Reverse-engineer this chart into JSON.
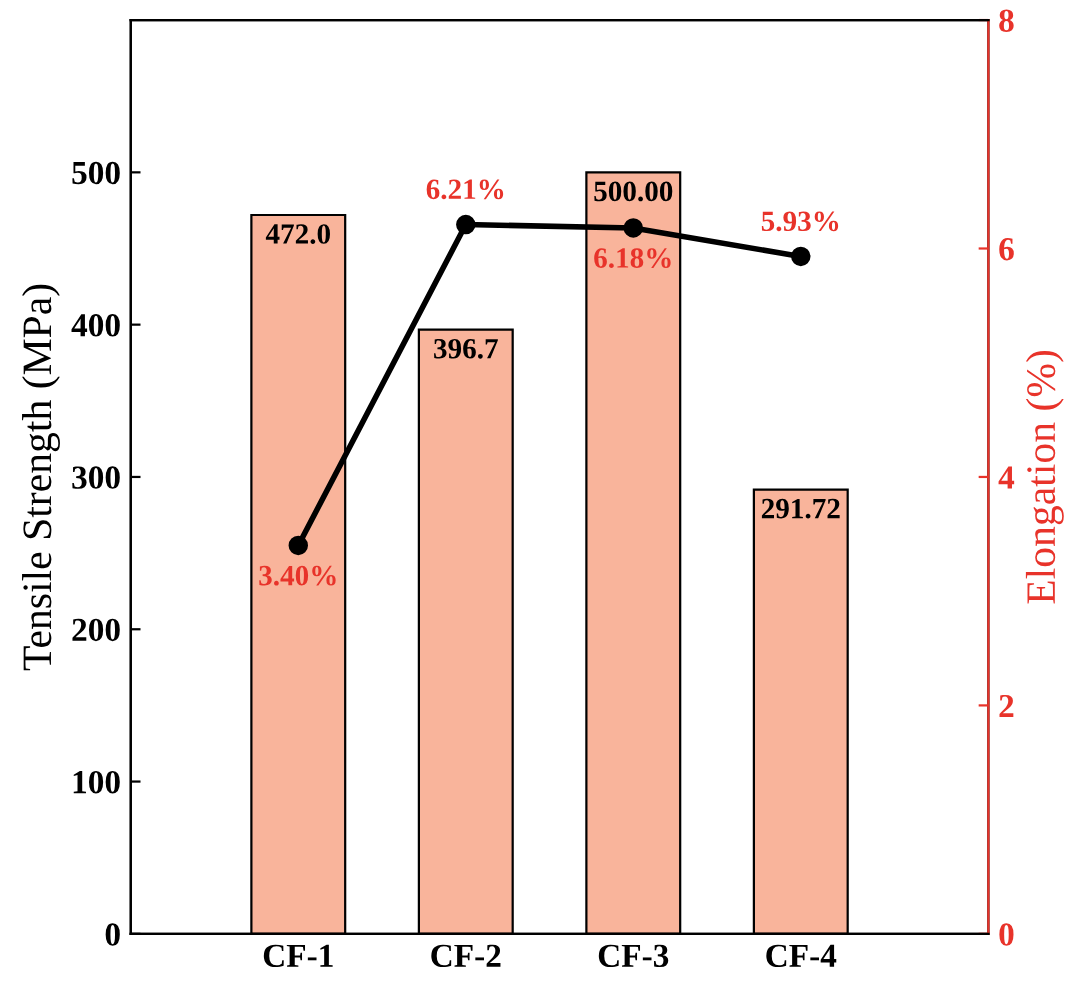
{
  "chart_data": {
    "type": "bar",
    "categories": [
      "CF-1",
      "CF-2",
      "CF-3",
      "CF-4"
    ],
    "ylabel": "Tensile Strength (MPa)",
    "y2label": "Elongation (%)",
    "ylim": [
      0,
      600
    ],
    "yticks": [
      0,
      100,
      200,
      300,
      400,
      500
    ],
    "y2lim": [
      0,
      8
    ],
    "y2ticks": [
      0,
      2,
      4,
      6,
      8
    ],
    "grid": false,
    "legend": false,
    "marker": "circle",
    "line_style": "solid",
    "series": [
      {
        "color": "#f9b49b",
        "values": [
          472.0,
          396.7,
          500.0,
          291.72
        ],
        "value_labels": [
          "472.0",
          "396.7",
          "500.00",
          "291.72"
        ]
      },
      {
        "type": "line",
        "axis": "y2",
        "color": "#000000",
        "values": [
          3.4,
          6.21,
          6.18,
          5.93
        ],
        "value_labels": [
          "3.40%",
          "6.21%",
          "6.18%",
          "5.93%"
        ]
      }
    ]
  }
}
